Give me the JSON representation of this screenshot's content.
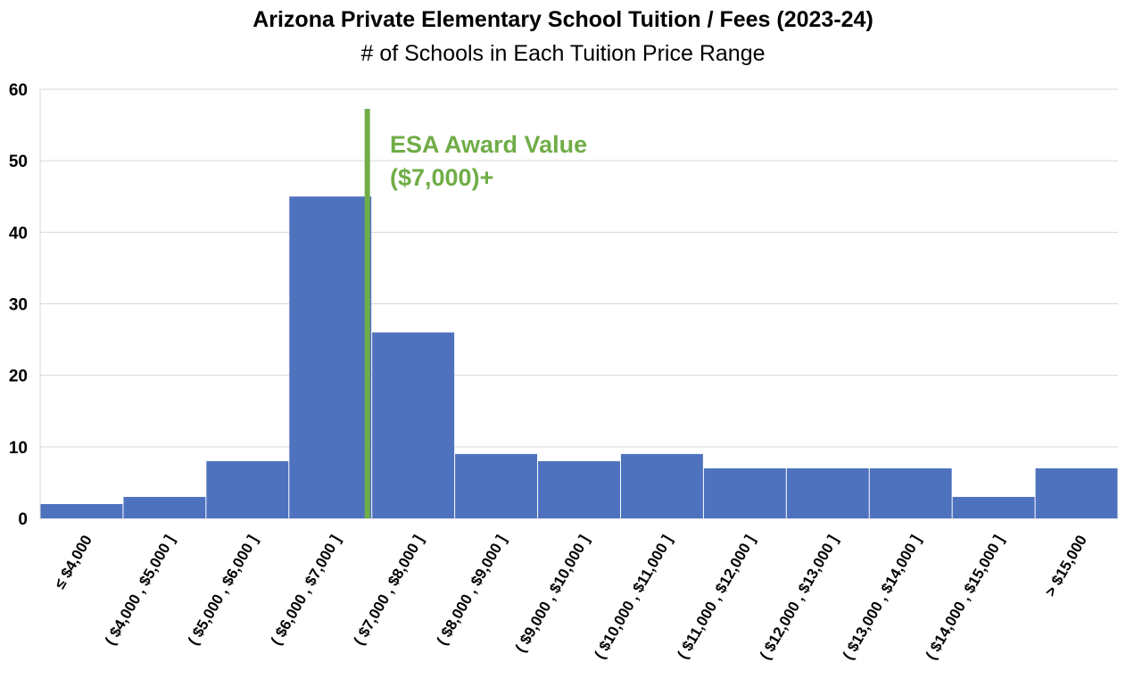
{
  "chart_data": {
    "type": "bar",
    "title": "Arizona Private Elementary School Tuition / Fees (2023-24)",
    "subtitle": "# of Schools in Each Tuition Price Range",
    "categories": [
      "≤ $4,000",
      "( $4,000 ,  $5,000 ]",
      "( $5,000 ,  $6,000 ]",
      "( $6,000 ,  $7,000 ]",
      "( $7,000 ,  $8,000 ]",
      "( $8,000 ,  $9,000 ]",
      "( $9,000 , $10,000 ]",
      "( $10,000 , $11,000 ]",
      "( $11,000 , $12,000 ]",
      "( $12,000 , $13,000 ]",
      "( $13,000 , $14,000 ]",
      "( $14,000 , $15,000 ]",
      ">  $15,000"
    ],
    "values": [
      2,
      3,
      8,
      45,
      26,
      9,
      8,
      9,
      7,
      7,
      7,
      3,
      7
    ],
    "ylim": [
      0,
      60
    ],
    "yticks": [
      0,
      10,
      20,
      30,
      40,
      50,
      60
    ],
    "grid": true,
    "bar_color": "#4f72bf",
    "reference_line": {
      "x": 7000,
      "color": "#70ad47",
      "label_line1": "ESA Award Value",
      "label_line2": "($7,000)+"
    }
  }
}
